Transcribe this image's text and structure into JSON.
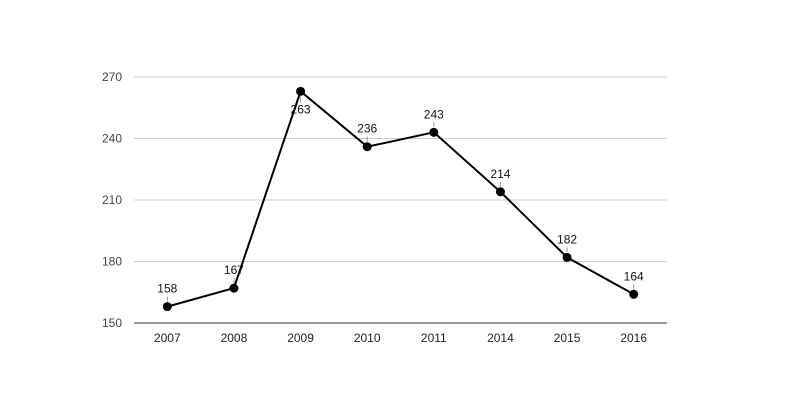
{
  "chart_data": {
    "type": "line",
    "categories": [
      "2007",
      "2008",
      "2009",
      "2010",
      "2011",
      "2014",
      "2015",
      "2016"
    ],
    "series": [
      {
        "values": [
          158,
          167,
          263,
          236,
          243,
          214,
          182,
          164
        ]
      }
    ],
    "data_labels": [
      "158",
      "167",
      "263",
      "236",
      "243",
      "214",
      "182",
      "164"
    ],
    "y_ticks": [
      "150",
      "180",
      "210",
      "240",
      "270"
    ],
    "ylim": [
      150,
      270
    ],
    "grid": true,
    "legend": "none",
    "colors": {
      "line": "#000000",
      "grid": "#cccccc"
    }
  }
}
